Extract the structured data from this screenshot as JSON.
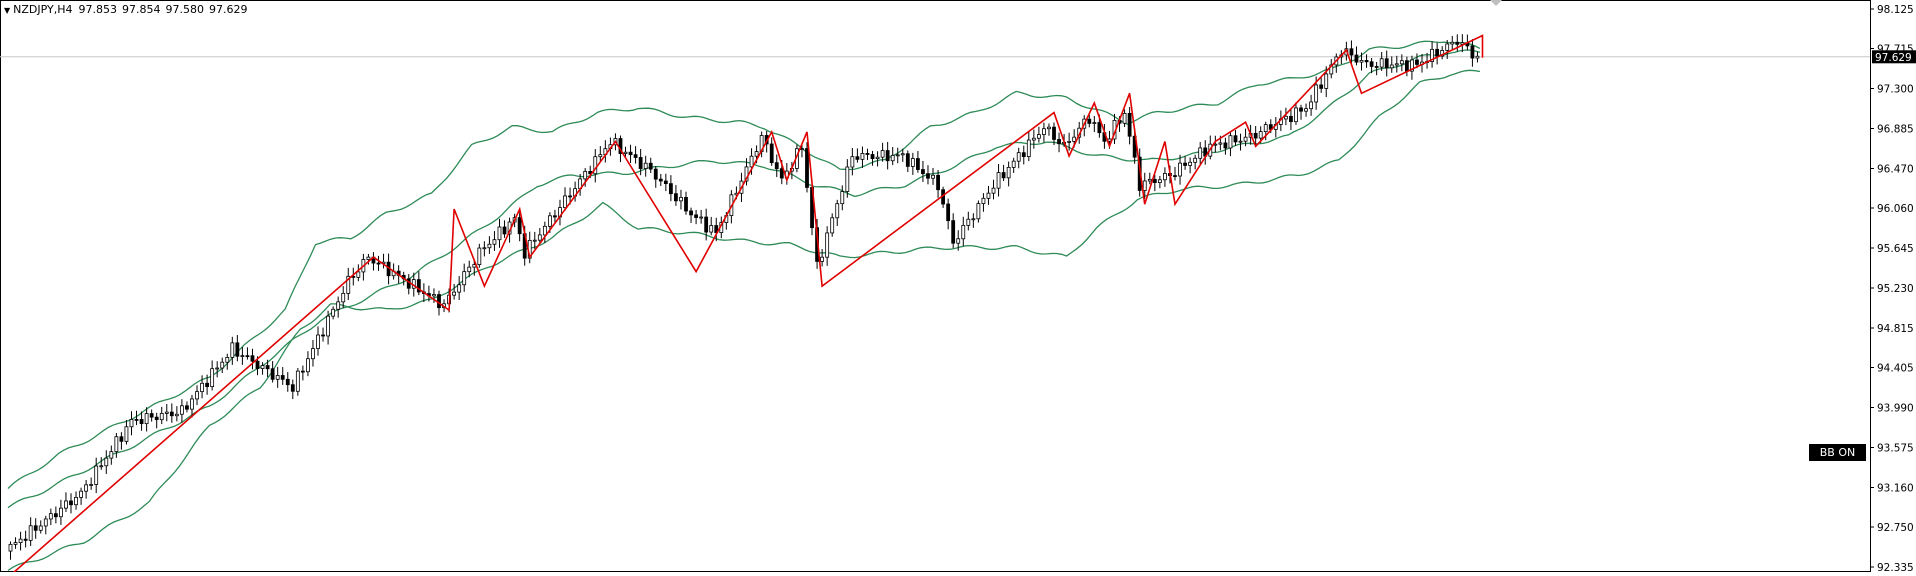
{
  "header": {
    "symbol": "NZDJPY,H4",
    "open": "97.853",
    "high": "97.854",
    "low": "97.580",
    "close": "97.629"
  },
  "badge": {
    "label": "BB ON"
  },
  "colors": {
    "background": "#ffffff",
    "bull_candle_fill": "#ffffff",
    "bear_candle_fill": "#000000",
    "candle_outline": "#000000",
    "bollinger": "#2e8b57",
    "zigzag": "#e00000",
    "price_line": "#c8c8c8",
    "price_label_bg": "#000000"
  },
  "chart_data": {
    "type": "candlestick",
    "symbol": "NZDJPY",
    "timeframe": "H4",
    "ylim": [
      92.2,
      98.3
    ],
    "y_ticks": [
      "98.125",
      "97.715",
      "97.300",
      "96.885",
      "96.470",
      "96.060",
      "95.645",
      "95.230",
      "94.815",
      "94.405",
      "93.990",
      "93.575",
      "93.160",
      "92.750",
      "92.335"
    ],
    "current_price": "97.629",
    "price_line_value": 97.629,
    "candle_count": 292,
    "bollinger_bands": {
      "upper_keypoints": [
        [
          0,
          93.15
        ],
        [
          10,
          93.5
        ],
        [
          25,
          93.9
        ],
        [
          40,
          94.3
        ],
        [
          55,
          95.0
        ],
        [
          61,
          95.7
        ],
        [
          68,
          95.75
        ],
        [
          75,
          96.0
        ],
        [
          84,
          96.2
        ],
        [
          92,
          96.7
        ],
        [
          100,
          96.9
        ],
        [
          108,
          96.85
        ],
        [
          117,
          97.05
        ],
        [
          125,
          97.1
        ],
        [
          135,
          97.0
        ],
        [
          145,
          96.95
        ],
        [
          150,
          96.9
        ],
        [
          157,
          96.7
        ],
        [
          165,
          96.45
        ],
        [
          174,
          96.55
        ],
        [
          183,
          96.9
        ],
        [
          192,
          97.05
        ],
        [
          200,
          97.25
        ],
        [
          210,
          97.2
        ],
        [
          222,
          96.95
        ],
        [
          228,
          97.05
        ],
        [
          240,
          97.15
        ],
        [
          248,
          97.35
        ],
        [
          255,
          97.4
        ],
        [
          263,
          97.5
        ],
        [
          270,
          97.7
        ],
        [
          278,
          97.75
        ],
        [
          285,
          97.8
        ],
        [
          292,
          97.72
        ]
      ],
      "middle_keypoints": [
        [
          0,
          92.95
        ],
        [
          10,
          93.2
        ],
        [
          25,
          93.6
        ],
        [
          40,
          94.0
        ],
        [
          52,
          94.5
        ],
        [
          62,
          94.9
        ],
        [
          70,
          95.1
        ],
        [
          80,
          95.35
        ],
        [
          90,
          95.7
        ],
        [
          98,
          96.0
        ],
        [
          105,
          96.3
        ],
        [
          112,
          96.4
        ],
        [
          122,
          96.42
        ],
        [
          132,
          96.5
        ],
        [
          140,
          96.55
        ],
        [
          150,
          96.5
        ],
        [
          160,
          96.3
        ],
        [
          168,
          96.2
        ],
        [
          178,
          96.3
        ],
        [
          188,
          96.5
        ],
        [
          196,
          96.7
        ],
        [
          206,
          96.75
        ],
        [
          216,
          96.6
        ],
        [
          226,
          96.55
        ],
        [
          234,
          96.6
        ],
        [
          244,
          96.7
        ],
        [
          254,
          96.8
        ],
        [
          262,
          97.1
        ],
        [
          270,
          97.45
        ],
        [
          280,
          97.62
        ],
        [
          286,
          97.68
        ],
        [
          292,
          97.68
        ]
      ],
      "lower_keypoints": [
        [
          0,
          92.3
        ],
        [
          15,
          92.6
        ],
        [
          28,
          93.0
        ],
        [
          40,
          93.8
        ],
        [
          50,
          94.2
        ],
        [
          58,
          94.8
        ],
        [
          64,
          95.05
        ],
        [
          75,
          95.0
        ],
        [
          84,
          95.1
        ],
        [
          95,
          95.45
        ],
        [
          108,
          95.75
        ],
        [
          118,
          96.1
        ],
        [
          125,
          95.85
        ],
        [
          135,
          95.8
        ],
        [
          145,
          95.72
        ],
        [
          155,
          95.68
        ],
        [
          165,
          95.55
        ],
        [
          175,
          95.6
        ],
        [
          185,
          95.65
        ],
        [
          200,
          95.65
        ],
        [
          210,
          95.55
        ],
        [
          216,
          95.85
        ],
        [
          224,
          96.15
        ],
        [
          232,
          96.25
        ],
        [
          244,
          96.3
        ],
        [
          256,
          96.4
        ],
        [
          264,
          96.55
        ],
        [
          272,
          97.0
        ],
        [
          280,
          97.35
        ],
        [
          286,
          97.45
        ],
        [
          292,
          97.48
        ]
      ]
    },
    "zigzag_points": [
      [
        0,
        92.25
      ],
      [
        72,
        95.55
      ],
      [
        87,
        95.0
      ],
      [
        88,
        96.05
      ],
      [
        94,
        95.25
      ],
      [
        101,
        96.05
      ],
      [
        103,
        95.55
      ],
      [
        120,
        96.75
      ],
      [
        136,
        95.4
      ],
      [
        151,
        96.85
      ],
      [
        154,
        96.35
      ],
      [
        158,
        96.85
      ],
      [
        161,
        95.25
      ],
      [
        207,
        97.05
      ],
      [
        210,
        96.6
      ],
      [
        215,
        97.15
      ],
      [
        218,
        96.7
      ],
      [
        222,
        97.25
      ],
      [
        225,
        96.1
      ],
      [
        229,
        96.75
      ],
      [
        231,
        96.1
      ],
      [
        239,
        96.75
      ],
      [
        245,
        96.95
      ],
      [
        247,
        96.7
      ],
      [
        265,
        97.7
      ],
      [
        268,
        97.25
      ],
      [
        292,
        97.85
      ],
      [
        292,
        97.62
      ]
    ],
    "price_keypoints": [
      [
        0,
        92.5
      ],
      [
        15,
        93.1
      ],
      [
        25,
        93.85
      ],
      [
        35,
        93.95
      ],
      [
        45,
        94.6
      ],
      [
        57,
        94.2
      ],
      [
        68,
        95.3
      ],
      [
        72,
        95.55
      ],
      [
        87,
        95.05
      ],
      [
        94,
        95.6
      ],
      [
        101,
        95.95
      ],
      [
        103,
        95.6
      ],
      [
        120,
        96.75
      ],
      [
        128,
        96.45
      ],
      [
        136,
        96.0
      ],
      [
        141,
        95.8
      ],
      [
        150,
        96.8
      ],
      [
        154,
        96.35
      ],
      [
        158,
        96.7
      ],
      [
        161,
        95.45
      ],
      [
        168,
        96.6
      ],
      [
        178,
        96.6
      ],
      [
        185,
        96.3
      ],
      [
        188,
        95.7
      ],
      [
        196,
        96.3
      ],
      [
        206,
        96.9
      ],
      [
        210,
        96.7
      ],
      [
        215,
        97.0
      ],
      [
        218,
        96.75
      ],
      [
        222,
        97.05
      ],
      [
        225,
        96.3
      ],
      [
        231,
        96.4
      ],
      [
        239,
        96.7
      ],
      [
        247,
        96.8
      ],
      [
        258,
        97.1
      ],
      [
        265,
        97.7
      ],
      [
        270,
        97.55
      ],
      [
        280,
        97.55
      ],
      [
        288,
        97.8
      ],
      [
        292,
        97.62
      ]
    ]
  }
}
